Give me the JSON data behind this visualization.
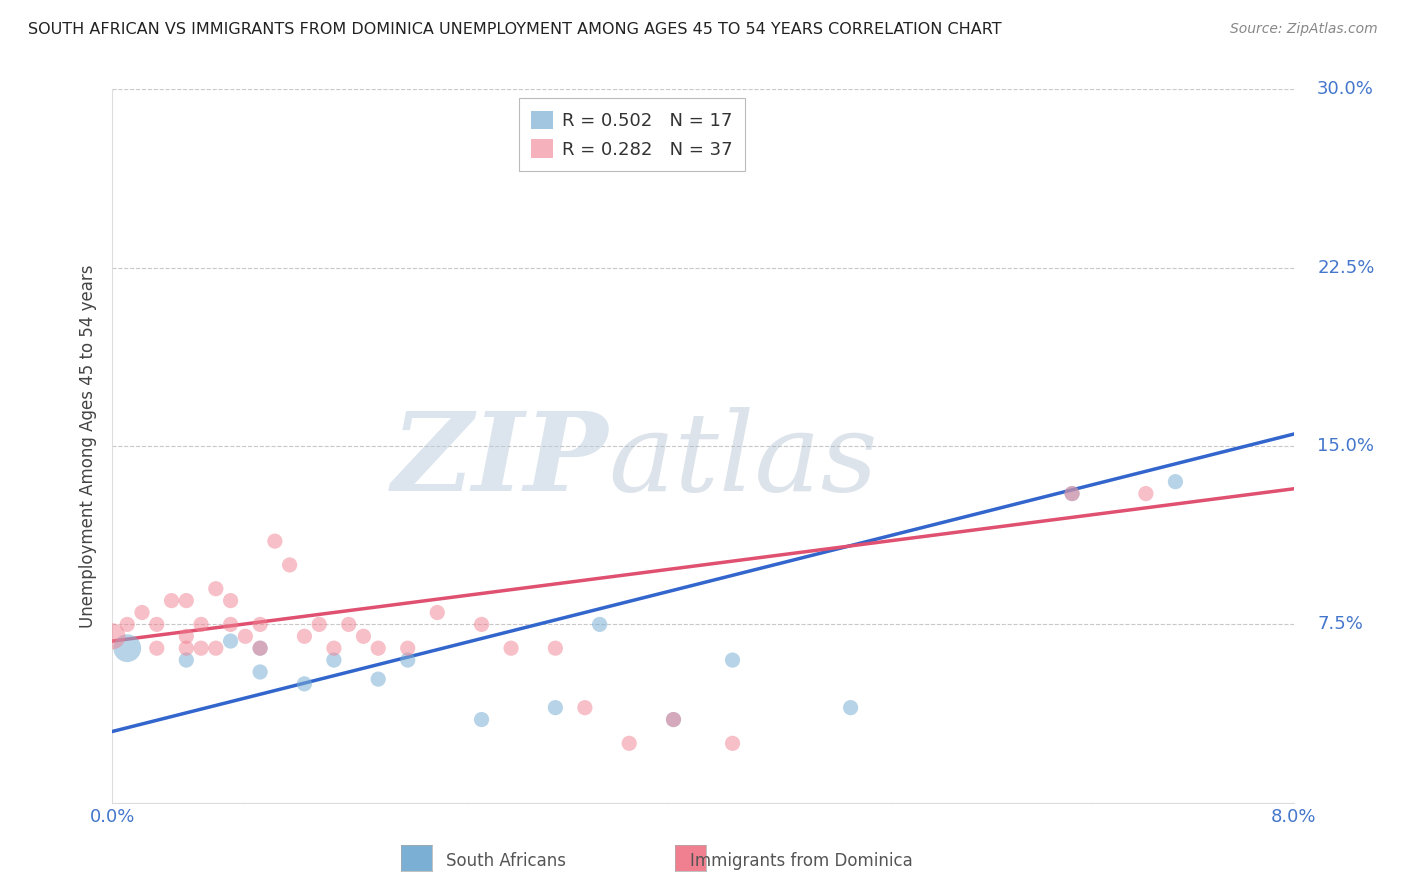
{
  "title": "SOUTH AFRICAN VS IMMIGRANTS FROM DOMINICA UNEMPLOYMENT AMONG AGES 45 TO 54 YEARS CORRELATION CHART",
  "source": "Source: ZipAtlas.com",
  "ylabel": "Unemployment Among Ages 45 to 54 years",
  "x_min": 0.0,
  "x_max": 0.08,
  "y_min": 0.0,
  "y_max": 0.3,
  "y_ticks": [
    0.0,
    0.075,
    0.15,
    0.225,
    0.3
  ],
  "y_tick_labels": [
    "",
    "7.5%",
    "15.0%",
    "22.5%",
    "30.0%"
  ],
  "x_ticks": [
    0.0,
    0.02,
    0.04,
    0.06,
    0.08
  ],
  "x_tick_labels": [
    "0.0%",
    "",
    "",
    "",
    "8.0%"
  ],
  "blue_R": 0.502,
  "blue_N": 17,
  "pink_R": 0.282,
  "pink_N": 37,
  "blue_color": "#7BAFD4",
  "pink_color": "#F08090",
  "blue_line_color": "#3366CC",
  "pink_line_color": "#E05070",
  "legend_label_blue": "South Africans",
  "legend_label_pink": "Immigrants from Dominica",
  "watermark_zip": "ZIP",
  "watermark_atlas": "atlas",
  "blue_scatter_x": [
    0.001,
    0.005,
    0.008,
    0.01,
    0.01,
    0.013,
    0.015,
    0.018,
    0.02,
    0.025,
    0.03,
    0.033,
    0.038,
    0.042,
    0.05,
    0.065,
    0.072
  ],
  "blue_scatter_y": [
    0.065,
    0.06,
    0.068,
    0.055,
    0.065,
    0.05,
    0.06,
    0.052,
    0.06,
    0.035,
    0.04,
    0.075,
    0.035,
    0.06,
    0.04,
    0.13,
    0.135
  ],
  "pink_scatter_x": [
    0.0,
    0.001,
    0.002,
    0.003,
    0.003,
    0.004,
    0.005,
    0.005,
    0.005,
    0.006,
    0.006,
    0.007,
    0.007,
    0.008,
    0.008,
    0.009,
    0.01,
    0.01,
    0.011,
    0.012,
    0.013,
    0.014,
    0.015,
    0.016,
    0.017,
    0.018,
    0.02,
    0.022,
    0.025,
    0.027,
    0.03,
    0.032,
    0.035,
    0.038,
    0.042,
    0.065,
    0.07
  ],
  "pink_scatter_y": [
    0.07,
    0.075,
    0.08,
    0.065,
    0.075,
    0.085,
    0.07,
    0.065,
    0.085,
    0.075,
    0.065,
    0.09,
    0.065,
    0.085,
    0.075,
    0.07,
    0.065,
    0.075,
    0.11,
    0.1,
    0.07,
    0.075,
    0.065,
    0.075,
    0.07,
    0.065,
    0.065,
    0.08,
    0.075,
    0.065,
    0.065,
    0.04,
    0.025,
    0.035,
    0.025,
    0.13,
    0.13
  ],
  "blue_trend_x": [
    0.0,
    0.08
  ],
  "blue_trend_y": [
    0.03,
    0.155
  ],
  "pink_trend_x": [
    0.0,
    0.08
  ],
  "pink_trend_y": [
    0.068,
    0.132
  ],
  "background_color": "#FFFFFF",
  "grid_color": "#C8C8C8",
  "title_color": "#222222",
  "right_axis_color": "#4477CC"
}
